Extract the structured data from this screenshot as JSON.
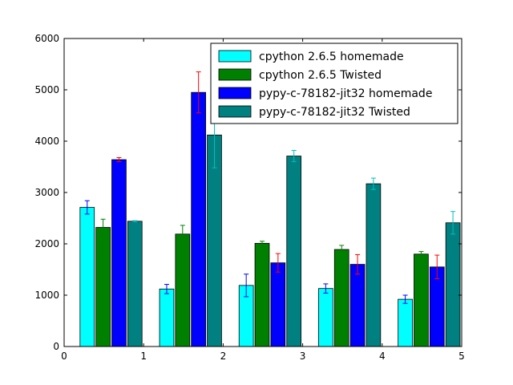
{
  "chart_data": {
    "type": "bar",
    "title": "",
    "xlabel": "",
    "ylabel": "",
    "xlim": [
      0,
      5
    ],
    "ylim": [
      0,
      6000
    ],
    "xticks": [
      "0",
      "1",
      "2",
      "3",
      "4",
      "5"
    ],
    "yticks": [
      "0",
      "1000",
      "2000",
      "3000",
      "4000",
      "5000",
      "6000"
    ],
    "legend_position": "top-right",
    "bar_width": 0.18,
    "series": [
      {
        "name": "cpython 2.6.5 homemade",
        "color": "#00ffff",
        "error_color": "#0000ff",
        "x": [
          0.2,
          1.2,
          2.2,
          3.2,
          4.2
        ],
        "values": [
          2710,
          1120,
          1190,
          1130,
          920
        ],
        "errors": [
          130,
          90,
          220,
          90,
          80
        ]
      },
      {
        "name": "cpython 2.6.5 Twisted",
        "color": "#008000",
        "error_color": "#008000",
        "x": [
          0.4,
          1.4,
          2.4,
          3.4,
          4.4
        ],
        "values": [
          2320,
          2190,
          2010,
          1890,
          1800
        ],
        "errors": [
          160,
          170,
          40,
          80,
          50
        ]
      },
      {
        "name": "pypy-c-78182-jit32 homemade",
        "color": "#0000ff",
        "error_color": "#ff0000",
        "x": [
          0.6,
          1.6,
          2.6,
          3.6,
          4.6
        ],
        "values": [
          3640,
          4950,
          1630,
          1600,
          1550
        ],
        "errors": [
          40,
          400,
          180,
          190,
          230
        ]
      },
      {
        "name": "pypy-c-78182-jit32 Twisted",
        "color": "#008080",
        "error_color": "#00bfbf",
        "x": [
          0.8,
          1.8,
          2.8,
          3.8,
          4.8
        ],
        "values": [
          2440,
          4120,
          3710,
          3170,
          2410
        ],
        "errors": [
          10,
          640,
          110,
          110,
          220
        ]
      }
    ]
  }
}
